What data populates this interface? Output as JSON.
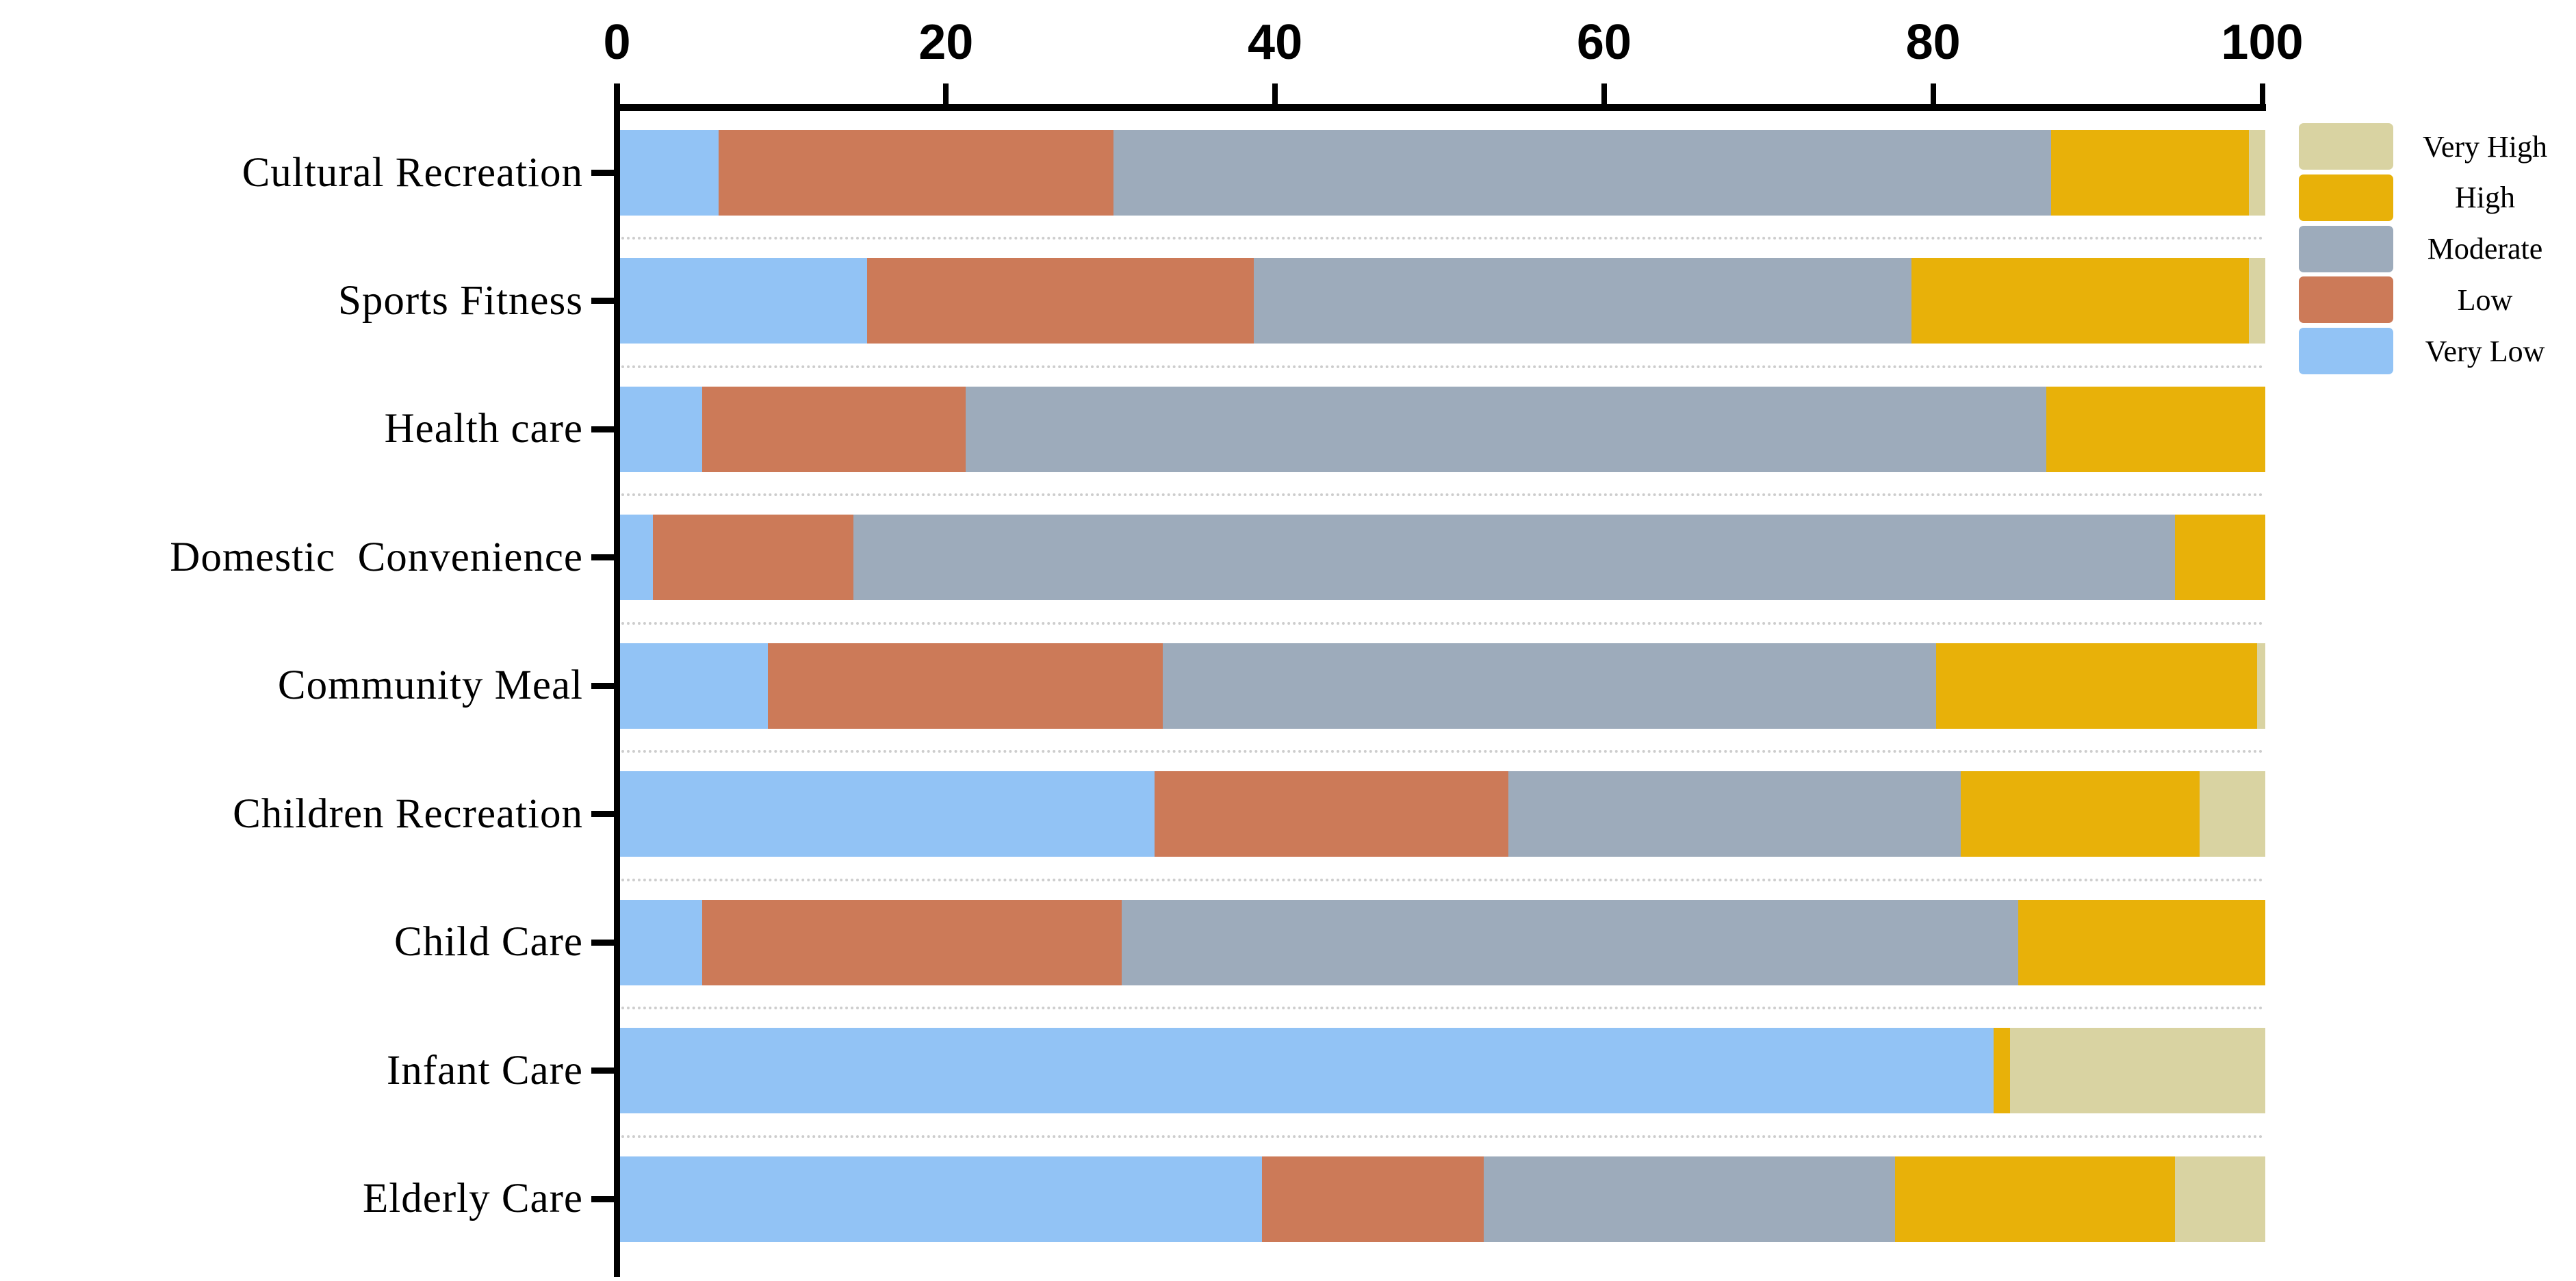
{
  "chart_data": {
    "type": "bar",
    "orientation": "horizontal",
    "stacked": true,
    "title": "",
    "xlabel": "",
    "ylabel": "",
    "xlim": [
      0,
      100
    ],
    "x_ticks": [
      0,
      20,
      40,
      60,
      80,
      100
    ],
    "grid": "dotted row separators",
    "legend_position": "right",
    "categories": [
      "Cultural Recreation",
      "Sports Fitness",
      "Health care",
      "Domestic  Convenience",
      "Community Meal",
      "Children Recreation",
      "Child Care",
      "Infant Care",
      "Elderly Care"
    ],
    "series": [
      {
        "name": "Very Low",
        "color": "#92c3f5",
        "values": [
          6,
          15,
          5,
          2,
          9,
          32.5,
          5,
          83.5,
          39
        ]
      },
      {
        "name": "Low",
        "color": "#cc7a58",
        "values": [
          24,
          23.5,
          16,
          12.2,
          24,
          21.5,
          25.5,
          0,
          13.5
        ]
      },
      {
        "name": "Moderate",
        "color": "#9dabbb",
        "values": [
          57,
          40,
          65.7,
          80.3,
          47,
          27.5,
          54.5,
          0,
          25
        ]
      },
      {
        "name": "High",
        "color": "#e8b109",
        "values": [
          12,
          20.5,
          13.3,
          5.5,
          19.5,
          14.5,
          15,
          1,
          17
        ]
      },
      {
        "name": "Very High",
        "color": "#d9d3a2",
        "values": [
          1,
          1,
          0,
          0,
          0.5,
          4,
          0,
          15.5,
          5.5
        ]
      }
    ]
  },
  "legend": {
    "items": [
      {
        "label": "Very High",
        "color": "#d9d3a2"
      },
      {
        "label": "High",
        "color": "#e8b109"
      },
      {
        "label": "Moderate",
        "color": "#9dabbb"
      },
      {
        "label": "Low",
        "color": "#cc7a58"
      },
      {
        "label": "Very Low",
        "color": "#92c3f5"
      }
    ]
  },
  "colors": {
    "axis": "#000000",
    "separator": "#cdcdcd",
    "background": "#ffffff"
  }
}
